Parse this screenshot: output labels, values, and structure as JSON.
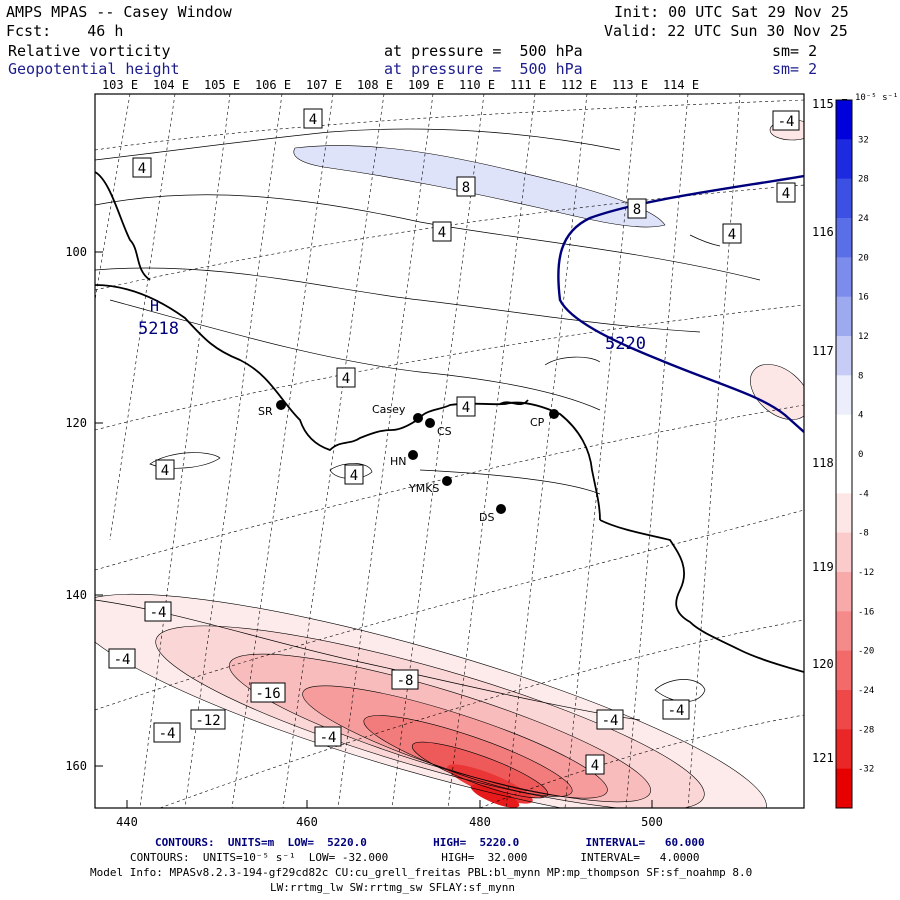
{
  "header": {
    "title": "AMPS MPAS -- Casey Window",
    "init": "Init: 00 UTC Sat 29 Nov 25",
    "fcst": "Fcst:    46 h",
    "valid": "Valid: 22 UTC Sun 30 Nov 25",
    "fields": [
      {
        "name": "Relative vorticity",
        "level": "at pressure =  500 hPa",
        "smooth": "sm= 2"
      },
      {
        "name": "Geopotential height",
        "level": "at pressure =  500 hPa",
        "smooth": "sm= 2"
      }
    ]
  },
  "axes": {
    "x_ticks": [
      "440",
      "460",
      "480",
      "500"
    ],
    "y_ticks": [
      "100",
      "120",
      "140",
      "160"
    ],
    "lon_top": [
      "103 E",
      "104 E",
      "105 E",
      "106 E",
      "107 E",
      "108 E",
      "109 E",
      "110 E",
      "111 E",
      "112 E",
      "113 E",
      "114 E"
    ],
    "lon_right": [
      "115 E",
      "116 E",
      "117 E",
      "118 E",
      "119 E",
      "120 E",
      "121 E"
    ]
  },
  "stations": [
    {
      "label": "SR"
    },
    {
      "label": "Casey"
    },
    {
      "label": "CS"
    },
    {
      "label": "CP"
    },
    {
      "label": "HN"
    },
    {
      "label": "YMKS"
    },
    {
      "label": "DS"
    }
  ],
  "contour_labels": {
    "height": [
      "5220",
      "5218"
    ],
    "high_marker": "H",
    "vorticity": [
      "4",
      "4",
      "4",
      "4",
      "8",
      "8",
      "4",
      "4",
      "4",
      "4",
      "4",
      "-4",
      "-4",
      "-4",
      "-4",
      "-8",
      "-12",
      "-16",
      "-4",
      "-4",
      "4",
      "-4"
    ]
  },
  "colorbar": {
    "units": "10⁻⁵ s⁻¹",
    "labels": [
      "32",
      "28",
      "24",
      "20",
      "16",
      "12",
      "8",
      "4",
      "0",
      "-4",
      "-8",
      "-12",
      "-16",
      "-20",
      "-24",
      "-28",
      "-32"
    ],
    "colors": [
      "#0000dc",
      "#1e2ae0",
      "#3d50e4",
      "#5a6ee8",
      "#7b8cec",
      "#9eaaf0",
      "#c6ccf6",
      "#eceefc",
      "#ffffff",
      "#ffffff",
      "#fde6e6",
      "#fbcaca",
      "#f8aaaa",
      "#f58a8a",
      "#f26a6a",
      "#ee4848",
      "#ea2626",
      "#e60000"
    ]
  },
  "footer": {
    "line1": "CONTOURS:  UNITS=m  LOW=  5220.0          HIGH=  5220.0          INTERVAL=   60.000",
    "line2": "CONTOURS:  UNITS=10⁻⁵ s⁻¹  LOW= -32.000        HIGH=  32.000        INTERVAL=   4.0000",
    "line3": "Model Info: MPASv8.2.3-194-gf29cd82c CU:cu_grell_freitas PBL:bl_mynn MP:mp_thompson SF:sf_noahmp 8.0",
    "line4": "LW:rrtmg_lw SW:rrtmg_sw SFLAY:sf_mynn"
  },
  "colors": {
    "height_contour": "#00007c",
    "text_blue": "#1c1c8c"
  }
}
